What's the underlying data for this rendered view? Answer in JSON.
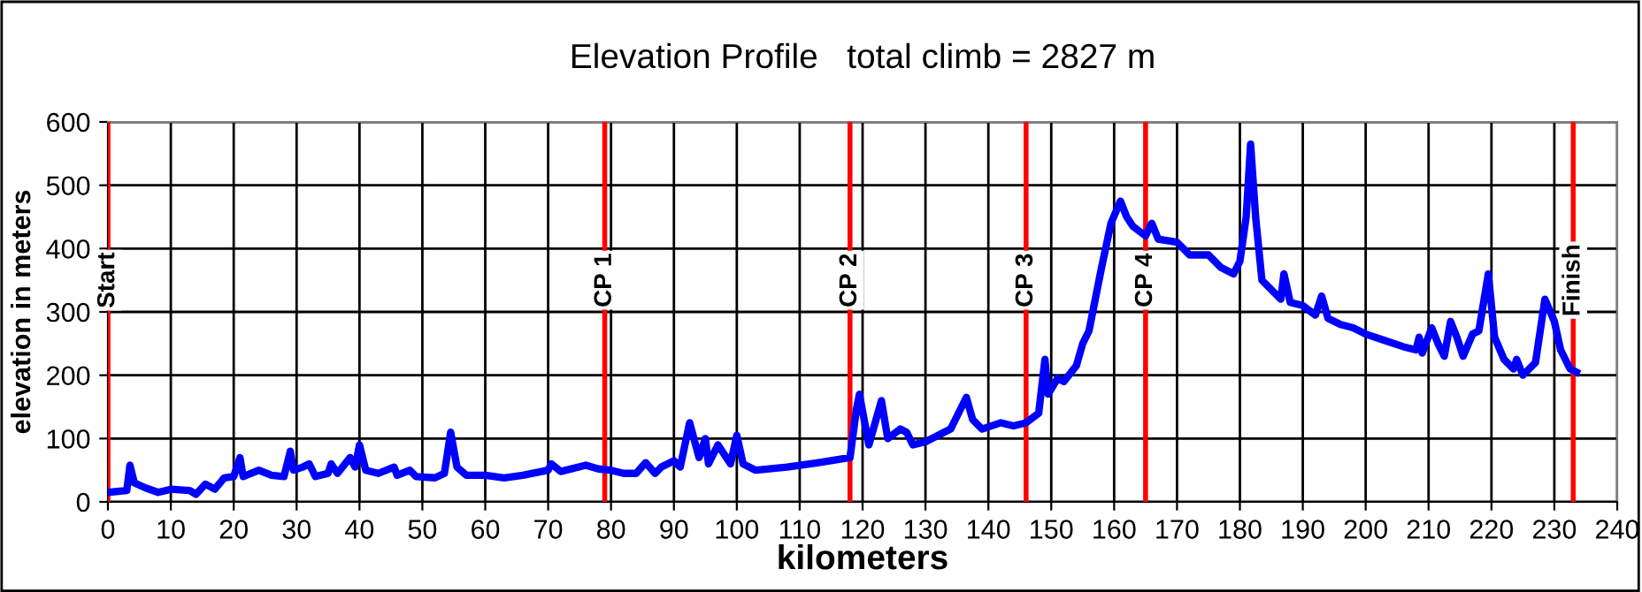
{
  "chart_data": {
    "type": "line",
    "title": "Elevation Profile   total climb = 2827 m",
    "xlabel": "kilometers",
    "ylabel": "elevation in meters",
    "x": [
      0,
      3,
      3.5,
      4.2,
      6,
      8,
      10,
      13,
      14,
      15.5,
      17,
      18.5,
      20,
      21,
      21.5,
      24,
      26,
      28,
      29,
      29.5,
      31,
      32,
      33,
      35,
      35.5,
      36.5,
      38.5,
      39.3,
      40,
      41,
      43,
      45.5,
      46,
      48,
      49,
      52,
      53.5,
      54.5,
      55.5,
      57,
      60,
      63,
      66,
      70,
      70.5,
      72,
      76,
      78,
      80,
      82,
      84,
      85.5,
      87,
      88,
      90,
      91,
      92.5,
      94,
      95,
      95.5,
      97,
      99,
      100,
      101,
      103,
      108,
      113,
      118,
      119,
      119.5,
      121,
      123,
      124,
      126,
      127,
      128,
      130,
      134,
      136.5,
      137.5,
      139,
      142,
      144,
      146,
      148,
      149,
      149.5,
      151,
      152,
      154,
      155,
      156,
      157,
      158,
      159.5,
      161,
      162,
      163,
      165,
      166,
      167,
      170,
      172,
      175,
      177,
      179,
      180,
      181,
      181.7,
      182.5,
      183.5,
      185,
      186.5,
      187,
      188,
      190,
      192,
      193,
      194,
      196,
      198,
      200,
      203,
      206,
      208,
      208.5,
      209,
      210.5,
      211.5,
      212.5,
      213.5,
      214.5,
      215.5,
      217,
      218,
      219.5,
      220.5,
      222,
      223.5,
      224,
      225,
      227,
      228.5,
      230,
      231,
      232.5,
      233.5
    ],
    "series": [
      {
        "color": "#0000ff",
        "values": [
          15,
          18,
          58,
          30,
          22,
          15,
          20,
          18,
          12,
          28,
          20,
          38,
          40,
          70,
          40,
          50,
          42,
          40,
          80,
          50,
          55,
          60,
          40,
          45,
          60,
          45,
          70,
          55,
          90,
          50,
          45,
          55,
          42,
          50,
          40,
          38,
          45,
          110,
          55,
          42,
          42,
          38,
          42,
          50,
          60,
          48,
          58,
          52,
          50,
          45,
          45,
          62,
          45,
          55,
          65,
          55,
          125,
          70,
          100,
          60,
          90,
          60,
          105,
          60,
          50,
          55,
          62,
          70,
          145,
          170,
          90,
          160,
          100,
          115,
          110,
          90,
          95,
          115,
          165,
          130,
          115,
          125,
          120,
          125,
          140,
          225,
          170,
          195,
          190,
          215,
          250,
          270,
          320,
          370,
          440,
          475,
          450,
          435,
          420,
          440,
          415,
          410,
          390,
          390,
          370,
          360,
          380,
          450,
          565,
          450,
          350,
          335,
          320,
          360,
          315,
          310,
          295,
          325,
          290,
          280,
          275,
          265,
          255,
          245,
          240,
          260,
          235,
          275,
          250,
          230,
          285,
          260,
          230,
          265,
          270,
          360,
          260,
          225,
          210,
          225,
          200,
          220,
          320,
          285,
          240,
          210,
          205
        ]
      }
    ],
    "xlim": [
      0,
      240
    ],
    "xticks": [
      0,
      10,
      20,
      30,
      40,
      50,
      60,
      70,
      80,
      90,
      100,
      110,
      120,
      130,
      140,
      150,
      160,
      170,
      180,
      190,
      200,
      210,
      220,
      230,
      240
    ],
    "ylim": [
      0,
      600
    ],
    "yticks": [
      0,
      100,
      200,
      300,
      400,
      500,
      600
    ],
    "grid": true,
    "line_style": "solid",
    "marker": "none",
    "ref_lines": [
      {
        "axis": "x",
        "value": 0,
        "label": "Start",
        "color": "#ff0000"
      },
      {
        "axis": "x",
        "value": 79,
        "label": "CP 1",
        "color": "#ff0000"
      },
      {
        "axis": "x",
        "value": 118,
        "label": "CP 2",
        "color": "#ff0000"
      },
      {
        "axis": "x",
        "value": 146,
        "label": "CP 3",
        "color": "#ff0000"
      },
      {
        "axis": "x",
        "value": 165,
        "label": "CP 4",
        "color": "#ff0000"
      },
      {
        "axis": "x",
        "value": 233,
        "label": "Finish",
        "color": "#ff0000"
      }
    ]
  }
}
